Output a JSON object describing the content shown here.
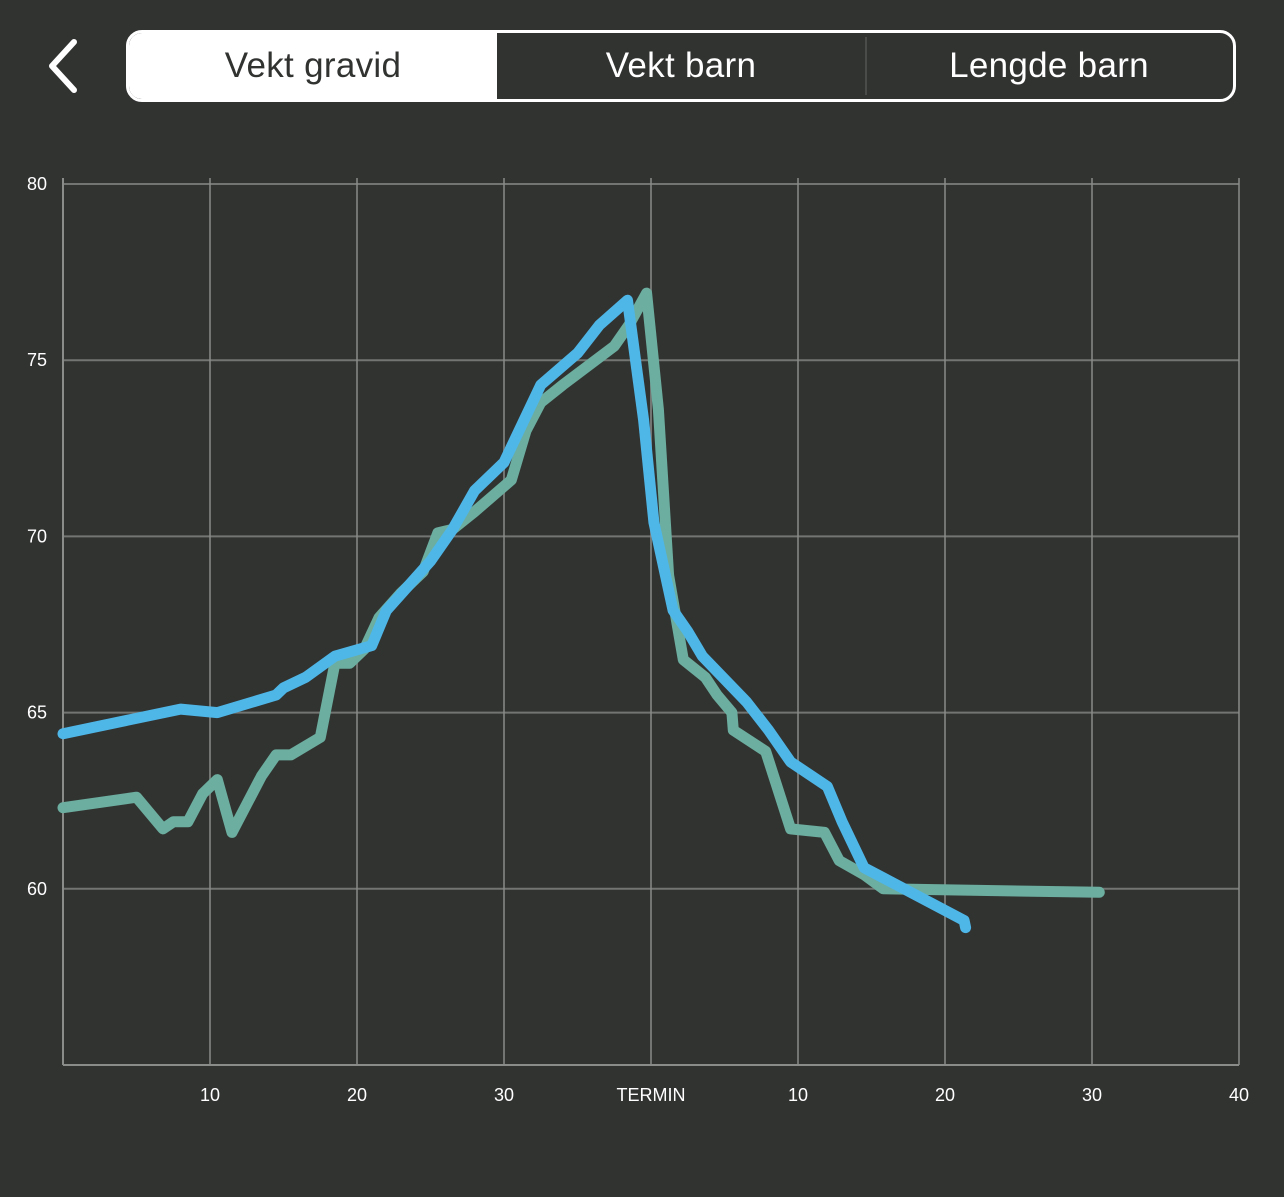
{
  "header": {
    "back_icon": "chevron-left-icon",
    "tabs": [
      {
        "label": "Vekt gravid",
        "active": true
      },
      {
        "label": "Vekt barn",
        "active": false
      },
      {
        "label": "Lengde barn",
        "active": false
      }
    ]
  },
  "colors": {
    "background": "#313331",
    "grid": "#8a8c8a",
    "series_blue": "#4fb6e8",
    "series_green": "#6cae9f"
  },
  "chart_data": {
    "type": "line",
    "xlim": [
      0,
      80
    ],
    "ylim": [
      55,
      80
    ],
    "grid": true,
    "x_ticks": [
      {
        "x": 10,
        "label": "10"
      },
      {
        "x": 20,
        "label": "20"
      },
      {
        "x": 30,
        "label": "30"
      },
      {
        "x": 40,
        "label": "TERMIN"
      },
      {
        "x": 50,
        "label": "10"
      },
      {
        "x": 60,
        "label": "20"
      },
      {
        "x": 70,
        "label": "30"
      },
      {
        "x": 80,
        "label": "40"
      }
    ],
    "y_ticks": [
      {
        "y": 60,
        "label": "60"
      },
      {
        "y": 65,
        "label": "65"
      },
      {
        "y": 70,
        "label": "70"
      },
      {
        "y": 75,
        "label": "75"
      },
      {
        "y": 80,
        "label": "80"
      }
    ],
    "series": [
      {
        "color": "#4fb6e8",
        "points": [
          [
            0,
            64.4
          ],
          [
            8,
            65.1
          ],
          [
            10.5,
            65.0
          ],
          [
            14.5,
            65.5
          ],
          [
            15,
            65.7
          ],
          [
            16.5,
            66.0
          ],
          [
            18.5,
            66.6
          ],
          [
            21,
            66.9
          ],
          [
            22,
            67.9
          ],
          [
            25,
            69.3
          ],
          [
            26.5,
            70.2
          ],
          [
            28,
            71.3
          ],
          [
            30,
            72.1
          ],
          [
            32.5,
            74.3
          ],
          [
            35,
            75.2
          ],
          [
            36.5,
            76.0
          ],
          [
            38.4,
            76.7
          ],
          [
            39.5,
            73.3
          ],
          [
            40.2,
            70.4
          ],
          [
            41.5,
            67.9
          ],
          [
            42.5,
            67.3
          ],
          [
            43.5,
            66.6
          ],
          [
            46.5,
            65.3
          ],
          [
            48,
            64.5
          ],
          [
            49.5,
            63.6
          ],
          [
            52,
            62.9
          ],
          [
            53,
            61.9
          ],
          [
            54.5,
            60.6
          ],
          [
            61.3,
            59.1
          ],
          [
            61.4,
            58.9
          ]
        ]
      },
      {
        "color": "#6cae9f",
        "points": [
          [
            0,
            62.3
          ],
          [
            5,
            62.6
          ],
          [
            6.8,
            61.7
          ],
          [
            7.5,
            61.9
          ],
          [
            8.5,
            61.9
          ],
          [
            9.5,
            62.7
          ],
          [
            10.5,
            63.1
          ],
          [
            11.5,
            61.6
          ],
          [
            13.5,
            63.2
          ],
          [
            14.5,
            63.8
          ],
          [
            15.5,
            63.8
          ],
          [
            17.5,
            64.3
          ],
          [
            18.5,
            66.4
          ],
          [
            19.5,
            66.4
          ],
          [
            20.5,
            66.8
          ],
          [
            21.5,
            67.7
          ],
          [
            23,
            68.4
          ],
          [
            24.5,
            69.0
          ],
          [
            25.5,
            70.1
          ],
          [
            26.5,
            70.2
          ],
          [
            28,
            70.7
          ],
          [
            30.5,
            71.6
          ],
          [
            31.5,
            73.0
          ],
          [
            32.5,
            73.8
          ],
          [
            34,
            74.3
          ],
          [
            37.5,
            75.4
          ],
          [
            38.5,
            76.0
          ],
          [
            39.7,
            76.9
          ],
          [
            40.5,
            73.6
          ],
          [
            41.2,
            68.9
          ],
          [
            42.2,
            66.5
          ],
          [
            43.7,
            66.0
          ],
          [
            44.5,
            65.5
          ],
          [
            45.5,
            65.0
          ],
          [
            45.6,
            64.5
          ],
          [
            47.8,
            63.9
          ],
          [
            48.5,
            63.0
          ],
          [
            49.5,
            61.7
          ],
          [
            51.8,
            61.6
          ],
          [
            52.8,
            60.8
          ],
          [
            54.5,
            60.4
          ],
          [
            55.8,
            60.0
          ],
          [
            70.5,
            59.9
          ]
        ]
      }
    ]
  }
}
